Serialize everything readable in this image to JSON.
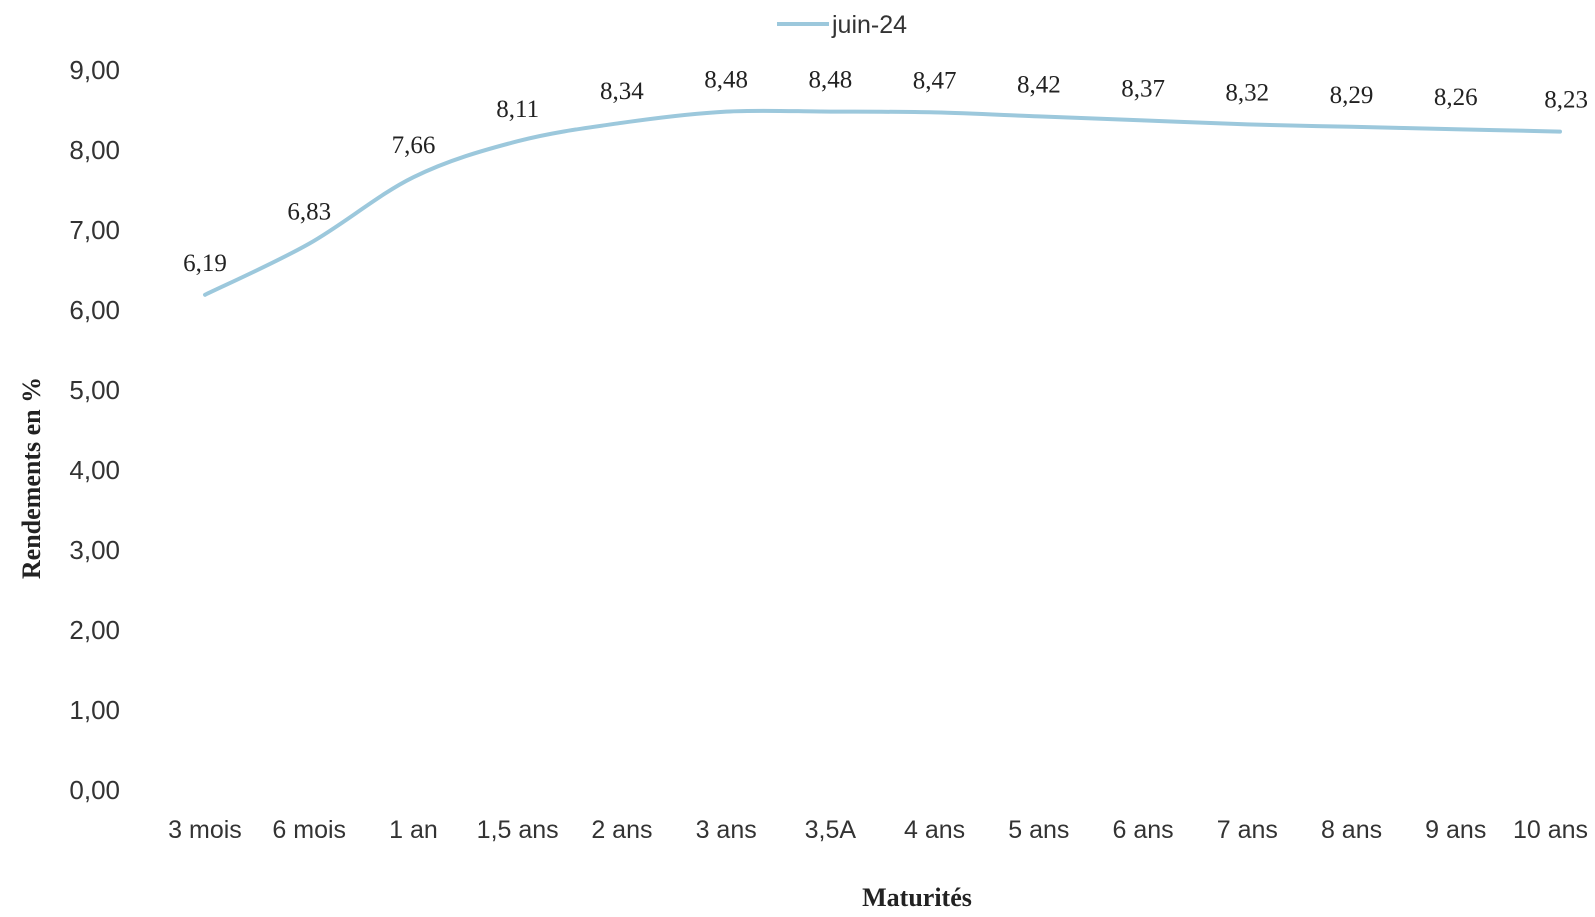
{
  "chart_data": {
    "type": "line",
    "title": "",
    "xlabel": "Maturités",
    "ylabel": "Rendements en %",
    "ylim": [
      0,
      9
    ],
    "yticks": [
      "0,00",
      "1,00",
      "2,00",
      "3,00",
      "4,00",
      "5,00",
      "6,00",
      "7,00",
      "8,00",
      "9,00"
    ],
    "grid": false,
    "legend_position": "top",
    "categories": [
      "3 mois",
      "6 mois",
      "1 an",
      "1,5 ans",
      "2 ans",
      "3 ans",
      "3,5A",
      "4 ans",
      "5 ans",
      "6 ans",
      "7 ans",
      "8 ans",
      "9 ans",
      "10 ans"
    ],
    "series": [
      {
        "name": "juin-24",
        "color": "#9cc8dc",
        "values": [
          6.19,
          6.83,
          7.66,
          8.11,
          8.34,
          8.48,
          8.48,
          8.47,
          8.42,
          8.37,
          8.32,
          8.29,
          8.26,
          8.23
        ],
        "labels": [
          "6,19",
          "6,83",
          "7,66",
          "8,11",
          "8,34",
          "8,48",
          "8,48",
          "8,47",
          "8,42",
          "8,37",
          "8,32",
          "8,29",
          "8,26",
          "8,23"
        ]
      }
    ]
  }
}
